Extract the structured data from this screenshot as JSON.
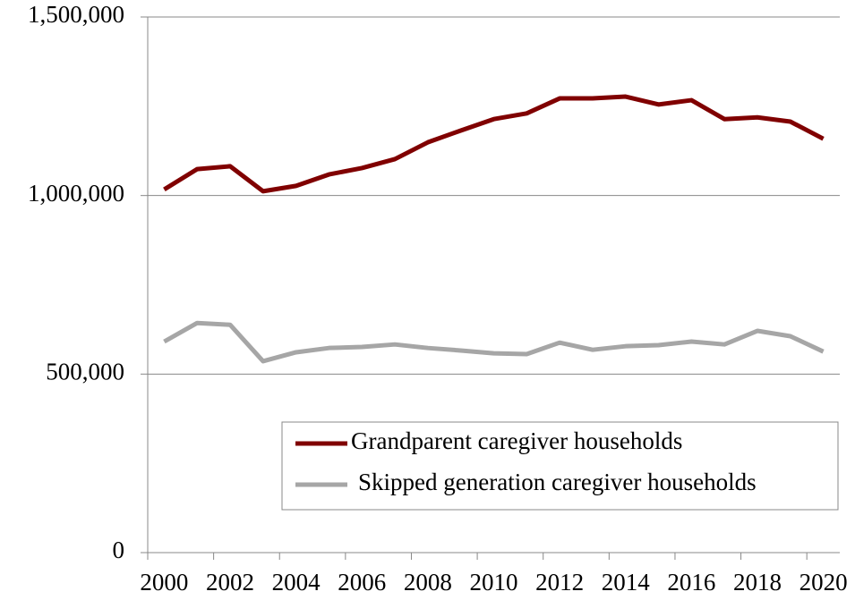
{
  "chart_data": {
    "type": "line",
    "categories": [
      "2000",
      null,
      "2002",
      null,
      "2004",
      null,
      "2006",
      null,
      "2008",
      null,
      "2010",
      null,
      "2012",
      null,
      "2014",
      null,
      "2016",
      null,
      "2018",
      null,
      "2020"
    ],
    "series": [
      {
        "name": "Grandparent caregiver households",
        "color": "#800000",
        "values": [
          1017000,
          1074000,
          1082000,
          1012000,
          1027000,
          1059000,
          1077000,
          1102000,
          1149000,
          1182000,
          1214000,
          1230000,
          1272000,
          1272000,
          1277000,
          1255000,
          1267000,
          1214000,
          1219000,
          1207000,
          1159000
        ]
      },
      {
        "name": "Skipped generation caregiver households",
        "color": "#a6a6a6",
        "values": [
          591000,
          643000,
          638000,
          536000,
          561000,
          573000,
          576000,
          583000,
          573000,
          566000,
          558000,
          556000,
          588000,
          568000,
          578000,
          581000,
          591000,
          583000,
          621000,
          606000,
          563000
        ]
      }
    ],
    "ylim": [
      0,
      1500000
    ],
    "yticks": [
      0,
      {
        "value": 500000,
        "label": "500,000"
      },
      {
        "value": 1000000,
        "label": "1,000,000"
      },
      {
        "value": 1500000,
        "label": "1,500,000"
      }
    ],
    "grid": true
  }
}
